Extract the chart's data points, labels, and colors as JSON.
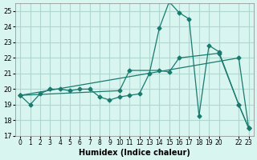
{
  "xlabel": "Humidex (Indice chaleur)",
  "ylabel": "",
  "bg_color": "#d8f5f0",
  "grid_color": "#b0d8d0",
  "line_color": "#1a7a6e",
  "xlim": [
    -0.5,
    23.5
  ],
  "ylim": [
    17,
    25.5
  ],
  "yticks": [
    17,
    18,
    19,
    20,
    21,
    22,
    23,
    24,
    25
  ],
  "xtick_positions": [
    0,
    1,
    2,
    3,
    4,
    5,
    6,
    7,
    8,
    9,
    10,
    11,
    12,
    13,
    14,
    15,
    16,
    17,
    18,
    19,
    20,
    22,
    23
  ],
  "xtick_labels": [
    "0",
    "1",
    "2",
    "3",
    "4",
    "5",
    "6",
    "7",
    "8",
    "9",
    "10",
    "11",
    "12",
    "13",
    "14",
    "15",
    "16",
    "17",
    "18",
    "19",
    "20",
    "22",
    "23"
  ],
  "series": [
    {
      "x": [
        0,
        1,
        2,
        3,
        4,
        5,
        6,
        7,
        8,
        9,
        10,
        11,
        12,
        13,
        14,
        15,
        16,
        17,
        18,
        19,
        20,
        22,
        23
      ],
      "y": [
        19.6,
        19.0,
        19.7,
        20.0,
        20.0,
        19.9,
        20.0,
        20.0,
        19.5,
        19.3,
        19.5,
        19.6,
        19.7,
        21.0,
        23.9,
        25.6,
        24.9,
        24.5,
        18.3,
        22.8,
        22.4,
        19.0,
        17.5
      ]
    },
    {
      "x": [
        0,
        10,
        11,
        14,
        15,
        16,
        20,
        22,
        23
      ],
      "y": [
        19.6,
        19.9,
        21.2,
        21.2,
        21.1,
        22.0,
        22.3,
        19.0,
        17.5
      ]
    },
    {
      "x": [
        0,
        22,
        23
      ],
      "y": [
        19.6,
        22.0,
        17.5
      ]
    }
  ]
}
